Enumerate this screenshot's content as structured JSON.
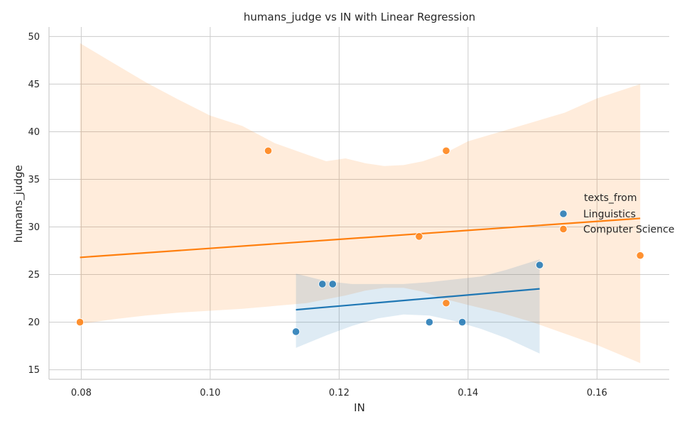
{
  "chart_data": {
    "type": "scatter",
    "title": "humans_judge vs IN with Linear Regression",
    "xlabel": "IN",
    "ylabel": "humans_judge",
    "xlim": [
      0.075,
      0.1712
    ],
    "ylim": [
      14.0,
      51.0
    ],
    "x_ticks": [
      "0.08",
      "0.10",
      "0.12",
      "0.14",
      "0.16"
    ],
    "x_tick_values": [
      0.08,
      0.1,
      0.12,
      0.14,
      0.16
    ],
    "y_ticks": [
      "15",
      "20",
      "25",
      "30",
      "35",
      "40",
      "45",
      "50"
    ],
    "y_tick_values": [
      15,
      20,
      25,
      30,
      35,
      40,
      45,
      50
    ],
    "grid": true,
    "legend": {
      "title": "texts_from",
      "position": "right",
      "entries": [
        "Linguistics",
        "Computer Science"
      ]
    },
    "series": [
      {
        "name": "Linguistics",
        "color": "#1f77b4",
        "points": [
          {
            "x": 0.1133,
            "y": 19
          },
          {
            "x": 0.1174,
            "y": 24
          },
          {
            "x": 0.119,
            "y": 24
          },
          {
            "x": 0.134,
            "y": 20
          },
          {
            "x": 0.1391,
            "y": 20
          },
          {
            "x": 0.1511,
            "y": 26
          }
        ],
        "regression": {
          "x": [
            0.1133,
            0.1511
          ],
          "y": [
            21.3,
            23.5
          ]
        },
        "confidence_band": {
          "x": [
            0.1133,
            0.118,
            0.122,
            0.126,
            0.13,
            0.134,
            0.138,
            0.142,
            0.146,
            0.1511
          ],
          "upper": [
            25.1,
            24.3,
            24.0,
            24.0,
            24.0,
            24.2,
            24.5,
            24.8,
            25.5,
            26.6
          ],
          "lower": [
            17.3,
            18.6,
            19.6,
            20.4,
            20.8,
            20.7,
            20.1,
            19.3,
            18.3,
            16.7
          ]
        }
      },
      {
        "name": "Computer Science",
        "color": "#ff7f0e",
        "points": [
          {
            "x": 0.0798,
            "y": 20
          },
          {
            "x": 0.109,
            "y": 38
          },
          {
            "x": 0.1324,
            "y": 29
          },
          {
            "x": 0.1366,
            "y": 38
          },
          {
            "x": 0.1366,
            "y": 22
          },
          {
            "x": 0.1667,
            "y": 27
          }
        ],
        "regression": {
          "x": [
            0.0798,
            0.1667
          ],
          "y": [
            26.8,
            30.9
          ]
        },
        "confidence_band": {
          "x": [
            0.0798,
            0.085,
            0.09,
            0.095,
            0.1,
            0.105,
            0.11,
            0.115,
            0.118,
            0.121,
            0.124,
            0.127,
            0.13,
            0.133,
            0.136,
            0.14,
            0.145,
            0.15,
            0.155,
            0.16,
            0.1667
          ],
          "upper": [
            49.3,
            47.2,
            45.2,
            43.4,
            41.7,
            40.6,
            38.8,
            37.6,
            36.9,
            37.2,
            36.7,
            36.4,
            36.5,
            36.9,
            37.6,
            39.0,
            40.0,
            41.0,
            42.0,
            43.5,
            45.0
          ],
          "lower": [
            19.8,
            20.3,
            20.7,
            21.0,
            21.2,
            21.4,
            21.7,
            22.0,
            22.4,
            22.8,
            23.3,
            23.6,
            23.6,
            23.2,
            22.5,
            21.8,
            21.0,
            20.0,
            18.8,
            17.6,
            15.7
          ]
        }
      }
    ]
  }
}
